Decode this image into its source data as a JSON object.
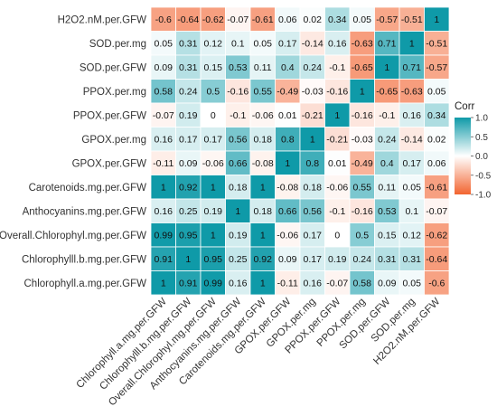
{
  "chart_data": {
    "type": "heatmap",
    "title": "",
    "xlabel": "",
    "ylabel": "",
    "x": [
      "Chlorophyll.a.mg.per.GFW",
      "Chlorophylll.b.mg.per.GFW",
      "Overall.Chlorophyl.mg.per.GFW",
      "Anthocyanins.mg.per.GFW",
      "Carotenoids.mg.per.GFW",
      "GPOX.per.GFW",
      "GPOX.per.mg",
      "PPOX.per.GFW",
      "PPOX.per.mg",
      "SOD.per.GFW",
      "SOD.per.mg",
      "H2O2.nM.per.GFW"
    ],
    "y": [
      "H2O2.nM.per.GFW",
      "SOD.per.mg",
      "SOD.per.GFW",
      "PPOX.per.mg",
      "PPOX.per.GFW",
      "GPOX.per.mg",
      "GPOX.per.GFW",
      "Carotenoids.mg.per.GFW",
      "Anthocyanins.mg.per.GFW",
      "Overall.Chlorophyl.mg.per.GFW",
      "Chlorophylll.b.mg.per.GFW",
      "Chlorophyll.a.mg.per.GFW"
    ],
    "values": [
      [
        -0.6,
        -0.64,
        -0.62,
        -0.07,
        -0.61,
        0.06,
        0.02,
        0.34,
        0.05,
        -0.57,
        -0.51,
        1
      ],
      [
        0.05,
        0.31,
        0.12,
        0.1,
        0.05,
        0.17,
        -0.14,
        0.16,
        -0.63,
        0.71,
        1,
        -0.51
      ],
      [
        0.09,
        0.31,
        0.15,
        0.53,
        0.11,
        0.4,
        0.24,
        -0.1,
        -0.65,
        1,
        0.71,
        -0.57
      ],
      [
        0.58,
        0.24,
        0.5,
        -0.16,
        0.55,
        -0.49,
        -0.03,
        -0.16,
        1,
        -0.65,
        -0.63,
        0.05
      ],
      [
        -0.07,
        0.19,
        0,
        -0.1,
        -0.06,
        0.01,
        -0.21,
        1,
        -0.16,
        -0.1,
        0.16,
        0.34
      ],
      [
        0.16,
        0.17,
        0.17,
        0.56,
        0.18,
        0.8,
        1,
        -0.21,
        -0.03,
        0.24,
        -0.14,
        0.02
      ],
      [
        -0.11,
        0.09,
        -0.06,
        0.66,
        -0.08,
        1,
        0.8,
        0.01,
        -0.49,
        0.4,
        0.17,
        0.06
      ],
      [
        1,
        0.92,
        1,
        0.18,
        1,
        -0.08,
        0.18,
        -0.06,
        0.55,
        0.11,
        0.05,
        -0.61
      ],
      [
        0.16,
        0.25,
        0.19,
        1,
        0.18,
        0.66,
        0.56,
        -0.1,
        -0.16,
        0.53,
        0.1,
        -0.07
      ],
      [
        0.99,
        0.95,
        1,
        0.19,
        1,
        -0.06,
        0.17,
        0,
        0.5,
        0.15,
        0.12,
        -0.62
      ],
      [
        0.91,
        1,
        0.95,
        0.25,
        0.92,
        0.09,
        0.17,
        0.19,
        0.24,
        0.31,
        0.31,
        -0.64
      ],
      [
        1,
        0.91,
        0.99,
        0.16,
        1,
        -0.11,
        0.16,
        -0.07,
        0.58,
        0.09,
        0.05,
        -0.6
      ]
    ],
    "legend": {
      "title": "Corr",
      "ticks": [
        "1.0",
        "0.5",
        "0.0",
        "-0.5",
        "-1.0"
      ],
      "position": "right"
    },
    "value_range": [
      -1,
      1
    ],
    "colors": {
      "high": "#0f9aa8",
      "mid": "#ffffff",
      "low": "#f26430"
    },
    "grid": true
  }
}
